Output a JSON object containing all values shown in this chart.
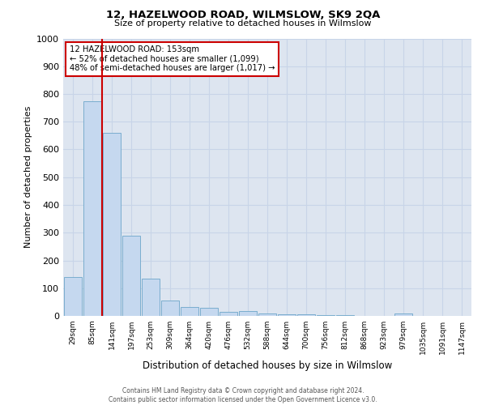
{
  "title": "12, HAZELWOOD ROAD, WILMSLOW, SK9 2QA",
  "subtitle": "Size of property relative to detached houses in Wilmslow",
  "xlabel": "Distribution of detached houses by size in Wilmslow",
  "ylabel": "Number of detached properties",
  "bar_labels": [
    "29sqm",
    "85sqm",
    "141sqm",
    "197sqm",
    "253sqm",
    "309sqm",
    "364sqm",
    "420sqm",
    "476sqm",
    "532sqm",
    "588sqm",
    "644sqm",
    "700sqm",
    "756sqm",
    "812sqm",
    "868sqm",
    "923sqm",
    "979sqm",
    "1035sqm",
    "1091sqm",
    "1147sqm"
  ],
  "bar_values": [
    140,
    775,
    660,
    290,
    135,
    55,
    32,
    30,
    15,
    18,
    8,
    5,
    5,
    3,
    3,
    0,
    0,
    10,
    0,
    0,
    0
  ],
  "bar_color": "#c5d8ef",
  "bar_edge_color": "#7aadce",
  "red_line_x": 1.5,
  "ylim": [
    0,
    1000
  ],
  "yticks": [
    0,
    100,
    200,
    300,
    400,
    500,
    600,
    700,
    800,
    900,
    1000
  ],
  "annotation_title": "12 HAZELWOOD ROAD: 153sqm",
  "annotation_line1": "← 52% of detached houses are smaller (1,099)",
  "annotation_line2": "48% of semi-detached houses are larger (1,017) →",
  "annotation_box_color": "#ffffff",
  "annotation_box_edge": "#cc0000",
  "grid_color": "#c8d4e8",
  "background_color": "#dde5f0",
  "footer_line1": "Contains HM Land Registry data © Crown copyright and database right 2024.",
  "footer_line2": "Contains public sector information licensed under the Open Government Licence v3.0."
}
